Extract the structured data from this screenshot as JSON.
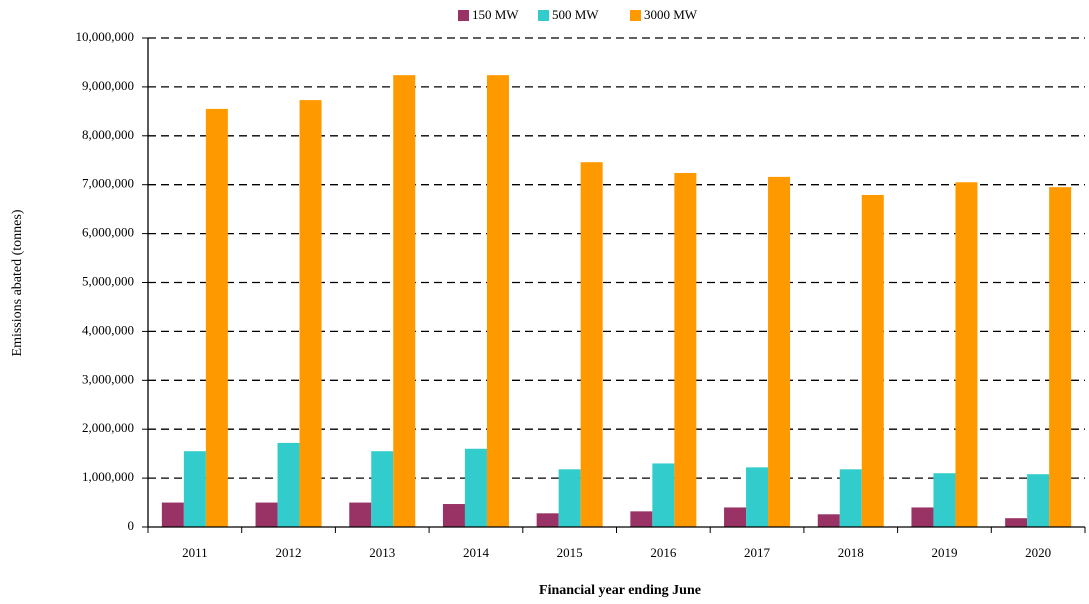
{
  "chart_data": {
    "type": "bar",
    "x_label": "Financial year ending June",
    "y_label": "Emissions abated (tonnes)",
    "categories": [
      "2011",
      "2012",
      "2013",
      "2014",
      "2015",
      "2016",
      "2017",
      "2018",
      "2019",
      "2020"
    ],
    "series": [
      {
        "name": "150 MW",
        "color": "#993366",
        "values": [
          500000,
          500000,
          500000,
          470000,
          280000,
          320000,
          400000,
          260000,
          400000,
          180000
        ]
      },
      {
        "name": "500 MW",
        "color": "#33cccc",
        "values": [
          1550000,
          1720000,
          1550000,
          1600000,
          1180000,
          1300000,
          1220000,
          1180000,
          1100000,
          1080000
        ]
      },
      {
        "name": "3000 MW",
        "color": "#ff9900",
        "values": [
          8550000,
          8730000,
          9240000,
          9240000,
          7460000,
          7240000,
          7160000,
          6790000,
          7050000,
          6950000
        ]
      }
    ],
    "ylim": [
      0,
      10000000
    ],
    "yticks": [
      0,
      {
        "value": 1000000,
        "label": "1,000,000"
      },
      {
        "value": 2000000,
        "label": "2,000,000"
      },
      {
        "value": 3000000,
        "label": "3,000,000"
      },
      {
        "value": 4000000,
        "label": "4,000,000"
      },
      {
        "value": 5000000,
        "label": "5,000,000"
      },
      {
        "value": 6000000,
        "label": "6,000,000"
      },
      {
        "value": 7000000,
        "label": "7,000,000"
      },
      {
        "value": 8000000,
        "label": "8,000,000"
      },
      {
        "value": 9000000,
        "label": "9,000,000"
      },
      {
        "value": 10000000,
        "label": "10,000,000"
      }
    ],
    "grid": true,
    "legend": "top"
  }
}
